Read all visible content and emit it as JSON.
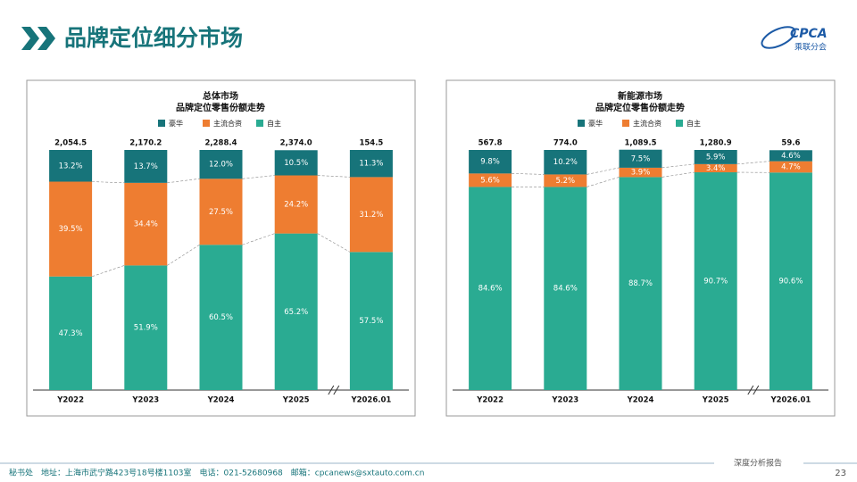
{
  "header": {
    "title": "品牌定位细分市场"
  },
  "logo": {
    "text": "CPCA",
    "subtext": "乘联分会"
  },
  "chart_data": [
    {
      "type": "stacked-bar",
      "title": "总体市场",
      "subtitle": "品牌定位零售份额走势",
      "categories": [
        "Y2022",
        "Y2023",
        "Y2024",
        "Y2025",
        "Y2026.01"
      ],
      "ylim": [
        0,
        100
      ],
      "series": [
        {
          "name": "豪华",
          "color": "#17747a",
          "values": [
            13.2,
            13.7,
            12.0,
            10.5,
            11.3
          ],
          "value_labels": [
            "13.2%",
            "13.7%",
            "12.0%",
            "10.5%",
            "11.3%"
          ]
        },
        {
          "name": "主流合资",
          "color": "#ee7d31",
          "values": [
            39.5,
            34.4,
            27.5,
            24.2,
            31.2
          ],
          "value_labels": [
            "39.5%",
            "34.4%",
            "27.5%",
            "24.2%",
            "31.2%"
          ]
        },
        {
          "name": "自主",
          "color": "#2aab92",
          "values": [
            47.3,
            51.9,
            60.5,
            65.2,
            57.5
          ],
          "value_labels": [
            "47.3%",
            "51.9%",
            "60.5%",
            "65.2%",
            "57.5%"
          ]
        }
      ],
      "totals": {
        "values": [
          2054.5,
          2170.2,
          2288.4,
          2374.0,
          154.5
        ],
        "value_labels": [
          "2,054.5",
          "2,170.2",
          "2,288.4",
          "2,374.0",
          "154.5"
        ]
      }
    },
    {
      "type": "stacked-bar",
      "title": "新能源市场",
      "subtitle": "品牌定位零售份额走势",
      "categories": [
        "Y2022",
        "Y2023",
        "Y2024",
        "Y2025",
        "Y2026.01"
      ],
      "ylim": [
        0,
        100
      ],
      "series": [
        {
          "name": "豪华",
          "color": "#17747a",
          "values": [
            9.8,
            10.2,
            7.5,
            5.9,
            4.6
          ],
          "value_labels": [
            "9.8%",
            "10.2%",
            "7.5%",
            "5.9%",
            "4.6%"
          ]
        },
        {
          "name": "主流合资",
          "color": "#ee7d31",
          "values": [
            5.6,
            5.2,
            3.9,
            3.4,
            4.7
          ],
          "value_labels": [
            "5.6%",
            "5.2%",
            "3.9%",
            "3.4%",
            "4.7%"
          ]
        },
        {
          "name": "自主",
          "color": "#2aab92",
          "values": [
            84.6,
            84.6,
            88.7,
            90.7,
            90.6
          ],
          "value_labels": [
            "84.6%",
            "84.6%",
            "88.7%",
            "90.7%",
            "90.6%"
          ]
        }
      ],
      "totals": {
        "values": [
          567.8,
          774.0,
          1089.5,
          1280.9,
          59.6
        ],
        "value_labels": [
          "567.8",
          "774.0",
          "1,089.5",
          "1,280.9",
          "59.6"
        ]
      }
    }
  ],
  "footer": {
    "address": "秘书处　地址：上海市武宁路423号18号楼1103室　电话：021-52680968　邮箱：cpcanews@sxtauto.com.cn",
    "report": "深度分析报告",
    "page": "23"
  }
}
